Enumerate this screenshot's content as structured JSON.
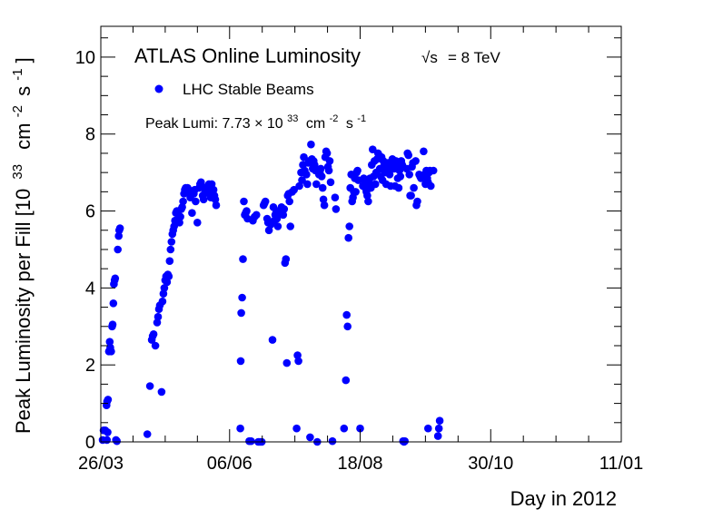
{
  "chart_data": {
    "type": "scatter",
    "title": "ATLAS Online Luminosity",
    "energy_label": "= 8 TeV",
    "energy_symbol": "√s",
    "legend": [
      {
        "name": "LHC Stable Beams",
        "marker": "circle",
        "color": "#0000ff"
      }
    ],
    "legend_placement": "top-left",
    "annotation": {
      "prefix": "Peak Lumi: 7.73",
      "times": "×",
      "base": "10",
      "exponent": "33",
      "unit_cm": "cm",
      "unit_cm_exp": "-2",
      "unit_s": "s",
      "unit_s_exp": "-1"
    },
    "xlabel": "Day in 2012",
    "ylabel": {
      "main": "Peak Luminosity per Fill [10",
      "exp": "33",
      "cm": "cm",
      "cm_exp": "-2",
      "s": "s",
      "s_exp": "-1",
      "close": "]"
    },
    "x_axis": {
      "range_days": [
        0,
        291
      ],
      "start_date": "2012-03-26",
      "ticks": [
        {
          "day": 0,
          "label": "26/03"
        },
        {
          "day": 72,
          "label": "06/06"
        },
        {
          "day": 145,
          "label": "18/08"
        },
        {
          "day": 218,
          "label": "30/10"
        },
        {
          "day": 291,
          "label": "11/01"
        }
      ]
    },
    "y_axis": {
      "range": [
        0,
        10.8
      ],
      "ticks": [
        0,
        2,
        4,
        6,
        8,
        10
      ]
    },
    "grid": false,
    "series": [
      {
        "name": "LHC Stable Beams",
        "color": "#0000ff",
        "points": [
          [
            1.0,
            0.05
          ],
          [
            1.5,
            0.3
          ],
          [
            2.5,
            0.3
          ],
          [
            3.2,
            0.95
          ],
          [
            3.5,
            1.05
          ],
          [
            4.0,
            1.1
          ],
          [
            3.8,
            0.25
          ],
          [
            3.4,
            0.05
          ],
          [
            4.5,
            2.35
          ],
          [
            5.0,
            2.6
          ],
          [
            5.3,
            2.45
          ],
          [
            5.8,
            2.35
          ],
          [
            6.3,
            3.0
          ],
          [
            6.6,
            3.05
          ],
          [
            7.0,
            3.6
          ],
          [
            7.3,
            4.1
          ],
          [
            7.7,
            4.2
          ],
          [
            8.0,
            4.25
          ],
          [
            8.5,
            0.05
          ],
          [
            9.0,
            0.02
          ],
          [
            9.5,
            5.0
          ],
          [
            10.0,
            5.35
          ],
          [
            10.3,
            5.5
          ],
          [
            10.7,
            5.55
          ],
          [
            26.0,
            0.2
          ],
          [
            27.5,
            1.45
          ],
          [
            28.5,
            2.65
          ],
          [
            29.0,
            2.75
          ],
          [
            29.5,
            2.8
          ],
          [
            30.5,
            2.5
          ],
          [
            31.5,
            3.1
          ],
          [
            32.0,
            3.25
          ],
          [
            32.5,
            3.45
          ],
          [
            33.0,
            3.55
          ],
          [
            34.0,
            1.3
          ],
          [
            34.5,
            3.65
          ],
          [
            35.0,
            3.85
          ],
          [
            35.5,
            4.0
          ],
          [
            36.0,
            4.2
          ],
          [
            36.5,
            4.3
          ],
          [
            37.0,
            4.15
          ],
          [
            37.5,
            4.35
          ],
          [
            38.0,
            4.3
          ],
          [
            38.5,
            4.7
          ],
          [
            39.0,
            5.0
          ],
          [
            39.5,
            5.2
          ],
          [
            40.0,
            5.4
          ],
          [
            40.5,
            5.5
          ],
          [
            41.0,
            5.6
          ],
          [
            41.5,
            5.75
          ],
          [
            42.0,
            5.95
          ],
          [
            42.5,
            6.0
          ],
          [
            43.0,
            5.95
          ],
          [
            43.5,
            5.8
          ],
          [
            44.0,
            5.7
          ],
          [
            44.5,
            5.85
          ],
          [
            45.0,
            6.05
          ],
          [
            45.5,
            6.1
          ],
          [
            46.0,
            6.25
          ],
          [
            46.5,
            6.45
          ],
          [
            47.0,
            6.55
          ],
          [
            47.5,
            6.6
          ],
          [
            48.0,
            6.5
          ],
          [
            48.5,
            6.6
          ],
          [
            49.0,
            6.55
          ],
          [
            49.5,
            6.45
          ],
          [
            50.0,
            6.35
          ],
          [
            51.0,
            5.95
          ],
          [
            52.0,
            6.45
          ],
          [
            52.5,
            6.55
          ],
          [
            53.0,
            6.25
          ],
          [
            54.0,
            5.7
          ],
          [
            55.0,
            6.6
          ],
          [
            55.5,
            6.7
          ],
          [
            56.0,
            6.75
          ],
          [
            56.5,
            6.65
          ],
          [
            57.0,
            6.4
          ],
          [
            57.5,
            6.3
          ],
          [
            58.0,
            6.45
          ],
          [
            58.5,
            6.5
          ],
          [
            59.0,
            6.55
          ],
          [
            59.5,
            6.6
          ],
          [
            60.0,
            6.5
          ],
          [
            60.5,
            6.7
          ],
          [
            61.0,
            6.65
          ],
          [
            61.5,
            6.35
          ],
          [
            62.0,
            6.7
          ],
          [
            62.5,
            6.45
          ],
          [
            63.0,
            6.55
          ],
          [
            63.5,
            6.4
          ],
          [
            64.0,
            6.3
          ],
          [
            64.5,
            6.15
          ],
          [
            78.0,
            0.35
          ],
          [
            78.2,
            2.1
          ],
          [
            78.5,
            3.35
          ],
          [
            79.0,
            3.75
          ],
          [
            79.5,
            4.75
          ],
          [
            80.0,
            6.25
          ],
          [
            80.5,
            5.9
          ],
          [
            81.0,
            5.95
          ],
          [
            81.5,
            6.0
          ],
          [
            82.0,
            5.8
          ],
          [
            83.0,
            0.02
          ],
          [
            84.0,
            0.02
          ],
          [
            85.0,
            5.75
          ],
          [
            86.0,
            5.85
          ],
          [
            87.0,
            5.9
          ],
          [
            88.0,
            0.0
          ],
          [
            89.0,
            0.0
          ],
          [
            90.0,
            0.0
          ],
          [
            91.0,
            6.15
          ],
          [
            91.5,
            6.2
          ],
          [
            92.0,
            6.25
          ],
          [
            93.0,
            5.8
          ],
          [
            93.5,
            5.7
          ],
          [
            94.0,
            5.5
          ],
          [
            95.0,
            5.65
          ],
          [
            96.0,
            2.65
          ],
          [
            96.5,
            6.1
          ],
          [
            97.0,
            5.75
          ],
          [
            97.5,
            5.9
          ],
          [
            98.0,
            5.95
          ],
          [
            98.5,
            5.8
          ],
          [
            99.0,
            5.6
          ],
          [
            99.5,
            6.0
          ],
          [
            100.0,
            5.95
          ],
          [
            101.0,
            6.1
          ],
          [
            101.5,
            6.0
          ],
          [
            102.0,
            5.9
          ],
          [
            102.5,
            6.05
          ],
          [
            103.0,
            4.65
          ],
          [
            103.5,
            4.75
          ],
          [
            104.0,
            2.05
          ],
          [
            104.5,
            6.4
          ],
          [
            105.0,
            6.45
          ],
          [
            105.5,
            6.25
          ],
          [
            106.0,
            5.6
          ],
          [
            107.0,
            6.5
          ],
          [
            108.0,
            6.55
          ],
          [
            109.5,
            0.35
          ],
          [
            110.0,
            2.25
          ],
          [
            110.5,
            2.1
          ],
          [
            111.0,
            6.65
          ],
          [
            112.0,
            7.0
          ],
          [
            112.5,
            6.8
          ],
          [
            113.0,
            7.2
          ],
          [
            113.5,
            7.4
          ],
          [
            114.0,
            7.05
          ],
          [
            115.0,
            6.95
          ],
          [
            115.5,
            6.7
          ],
          [
            116.0,
            7.25
          ],
          [
            116.5,
            7.3
          ],
          [
            117.0,
            0.12
          ],
          [
            117.5,
            7.73
          ],
          [
            118.0,
            7.35
          ],
          [
            118.5,
            7.1
          ],
          [
            119.0,
            7.3
          ],
          [
            119.5,
            7.2
          ],
          [
            120.0,
            7.05
          ],
          [
            120.5,
            6.7
          ],
          [
            121.0,
            0.0
          ],
          [
            122.0,
            6.95
          ],
          [
            122.5,
            7.0
          ],
          [
            123.0,
            7.1
          ],
          [
            123.5,
            6.9
          ],
          [
            124.0,
            6.6
          ],
          [
            124.5,
            6.3
          ],
          [
            125.0,
            6.15
          ],
          [
            125.5,
            7.4
          ],
          [
            126.0,
            7.55
          ],
          [
            126.5,
            7.5
          ],
          [
            127.0,
            7.15
          ],
          [
            127.5,
            7.05
          ],
          [
            128.0,
            7.3
          ],
          [
            128.5,
            6.75
          ],
          [
            129.5,
            0.02
          ],
          [
            131.0,
            6.35
          ],
          [
            131.5,
            6.05
          ],
          [
            136.0,
            0.35
          ],
          [
            137.0,
            1.6
          ],
          [
            137.5,
            3.3
          ],
          [
            138.0,
            3.0
          ],
          [
            138.5,
            5.3
          ],
          [
            139.0,
            5.6
          ],
          [
            139.5,
            6.6
          ],
          [
            140.0,
            6.95
          ],
          [
            140.5,
            6.25
          ],
          [
            141.0,
            6.35
          ],
          [
            141.5,
            6.5
          ],
          [
            142.0,
            6.85
          ],
          [
            142.5,
            6.5
          ],
          [
            143.0,
            7.0
          ],
          [
            143.5,
            7.05
          ],
          [
            144.0,
            6.8
          ],
          [
            145.0,
            0.35
          ],
          [
            146.5,
            6.65
          ],
          [
            147.0,
            6.85
          ],
          [
            147.5,
            6.8
          ],
          [
            148.0,
            6.6
          ],
          [
            148.5,
            6.5
          ],
          [
            149.0,
            6.4
          ],
          [
            149.5,
            6.25
          ],
          [
            150.0,
            6.75
          ],
          [
            150.5,
            6.85
          ],
          [
            151.0,
            6.6
          ],
          [
            151.5,
            7.2
          ],
          [
            152.0,
            7.6
          ],
          [
            152.5,
            6.9
          ],
          [
            153.0,
            7.3
          ],
          [
            153.5,
            6.7
          ],
          [
            154.0,
            7.0
          ],
          [
            154.5,
            7.35
          ],
          [
            155.0,
            7.5
          ],
          [
            155.5,
            7.45
          ],
          [
            156.0,
            7.1
          ],
          [
            156.5,
            6.9
          ],
          [
            157.0,
            7.4
          ],
          [
            157.5,
            6.8
          ],
          [
            158.0,
            7.3
          ],
          [
            158.5,
            7.2
          ],
          [
            159.0,
            7.0
          ],
          [
            159.5,
            6.7
          ],
          [
            160.0,
            7.1
          ],
          [
            160.5,
            7.25
          ],
          [
            161.0,
            7.0
          ],
          [
            161.5,
            6.95
          ],
          [
            162.0,
            6.65
          ],
          [
            162.5,
            7.2
          ],
          [
            163.0,
            7.35
          ],
          [
            163.5,
            7.25
          ],
          [
            164.0,
            7.1
          ],
          [
            164.5,
            6.65
          ],
          [
            165.0,
            7.3
          ],
          [
            165.5,
            7.2
          ],
          [
            166.0,
            6.85
          ],
          [
            166.5,
            6.6
          ],
          [
            167.0,
            7.05
          ],
          [
            167.5,
            6.9
          ],
          [
            168.0,
            7.3
          ],
          [
            168.5,
            7.2
          ],
          [
            169.0,
            0.02
          ],
          [
            169.5,
            0.0
          ],
          [
            170.0,
            0.02
          ],
          [
            171.0,
            7.1
          ],
          [
            171.5,
            7.5
          ],
          [
            172.0,
            7.45
          ],
          [
            172.5,
            6.95
          ],
          [
            173.0,
            6.4
          ],
          [
            173.5,
            6.4
          ],
          [
            174.0,
            7.15
          ],
          [
            174.5,
            7.25
          ],
          [
            175.0,
            6.6
          ],
          [
            176.0,
            7.3
          ],
          [
            176.5,
            6.15
          ],
          [
            177.0,
            6.25
          ],
          [
            178.0,
            6.95
          ],
          [
            178.5,
            6.9
          ],
          [
            179.0,
            6.85
          ],
          [
            180.5,
            7.55
          ],
          [
            181.0,
            6.95
          ],
          [
            181.5,
            6.7
          ],
          [
            182.0,
            7.05
          ],
          [
            182.5,
            6.85
          ],
          [
            183.0,
            6.75
          ],
          [
            183.5,
            7.0
          ],
          [
            184.0,
            7.05
          ],
          [
            184.5,
            6.65
          ],
          [
            183.0,
            0.35
          ],
          [
            188.5,
            0.15
          ],
          [
            189.0,
            0.35
          ],
          [
            189.5,
            0.55
          ],
          [
            186.0,
            7.05
          ]
        ]
      }
    ]
  }
}
